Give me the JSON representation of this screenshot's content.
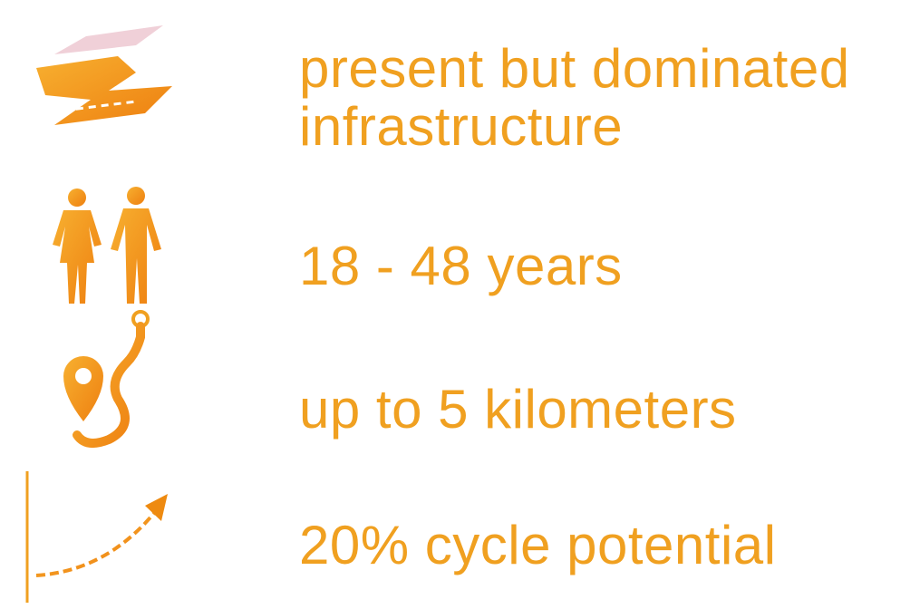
{
  "items": [
    {
      "lines": [
        "present but dominated",
        "infrastructure"
      ]
    },
    {
      "lines": [
        "18 - 48 years"
      ]
    },
    {
      "lines": [
        "up to 5 kilometers"
      ]
    },
    {
      "lines": [
        "20% cycle potential"
      ]
    }
  ]
}
